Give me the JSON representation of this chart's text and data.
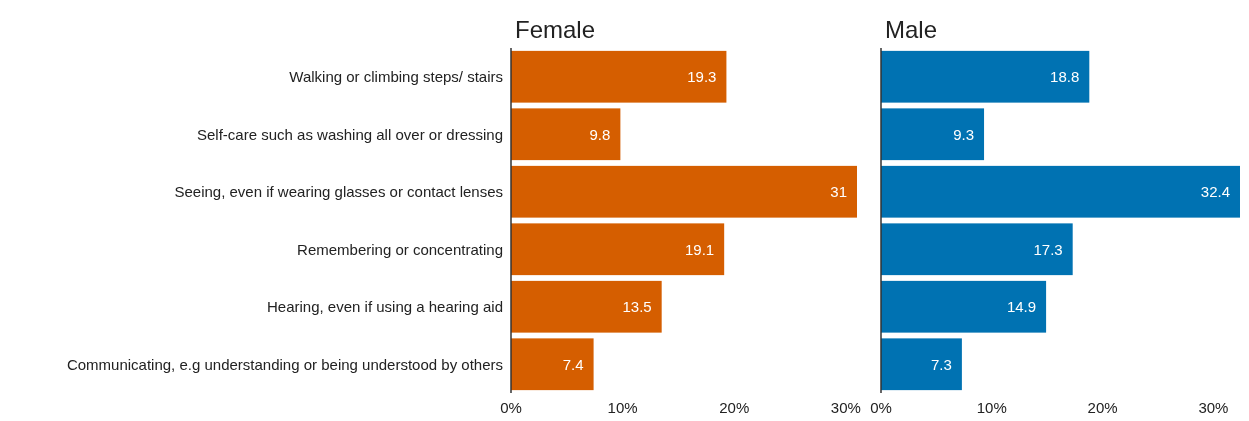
{
  "chart_data": [
    {
      "type": "bar",
      "orientation": "horizontal",
      "title": "Female",
      "categories": [
        "Walking or climbing steps/ stairs",
        "Self-care such as washing all over or dressing",
        "Seeing, even if wearing glasses or contact lenses",
        "Remembering or concentrating",
        "Hearing, even if using a hearing aid",
        "Communicating, e.g understanding or being understood by others"
      ],
      "series": [
        {
          "color": "#d55e00",
          "values": [
            19.3,
            9.8,
            31,
            19.1,
            13.5,
            7.4
          ]
        }
      ],
      "xlim": [
        0,
        31
      ],
      "xticks": [
        {
          "value": 0,
          "label": "0%"
        },
        {
          "value": 10,
          "label": "10%"
        },
        {
          "value": 20,
          "label": "20%"
        },
        {
          "value": 30,
          "label": "30%"
        }
      ],
      "data_labels": true,
      "grid": false
    },
    {
      "type": "bar",
      "orientation": "horizontal",
      "title": "Male",
      "categories": [
        null,
        null,
        null,
        null,
        null,
        null
      ],
      "series": [
        {
          "color": "#0072b2",
          "values": [
            18.8,
            9.3,
            32.4,
            17.3,
            14.9,
            7.3
          ]
        }
      ],
      "xlim": [
        0,
        32.4
      ],
      "xticks": [
        {
          "value": 0,
          "label": "0%"
        },
        {
          "value": 10,
          "label": "10%"
        },
        {
          "value": 20,
          "label": "20%"
        },
        {
          "value": 30,
          "label": "30%"
        }
      ],
      "data_labels": true,
      "tick_labels": "x",
      "grid": false
    }
  ]
}
